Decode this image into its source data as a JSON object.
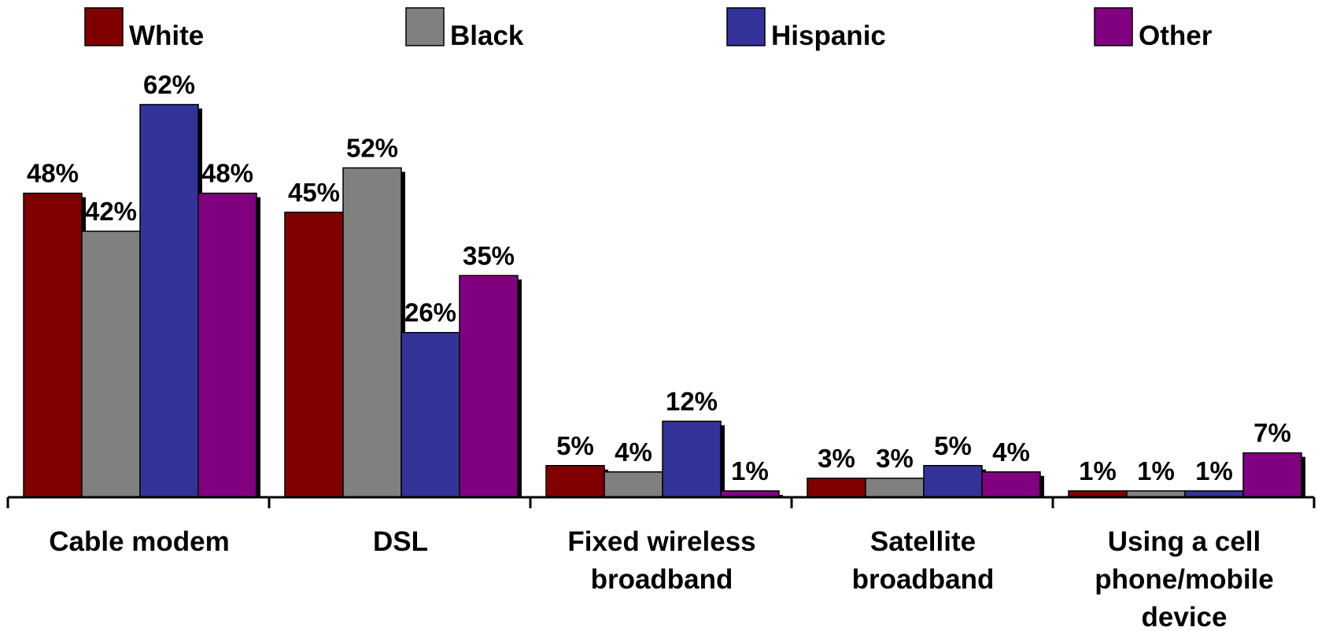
{
  "chart_data": {
    "type": "bar",
    "categories": [
      "Cable modem",
      "DSL",
      "Fixed wireless broadband",
      "Satellite broadband",
      "Using a cell phone/mobile device"
    ],
    "category_lines": [
      [
        "Cable modem"
      ],
      [
        "DSL"
      ],
      [
        "Fixed wireless",
        "broadband"
      ],
      [
        "Satellite",
        "broadband"
      ],
      [
        "Using a cell",
        "phone/mobile",
        "device"
      ]
    ],
    "series": [
      {
        "name": "White",
        "color": "#800000",
        "values": [
          48,
          45,
          5,
          3,
          1
        ],
        "labels": [
          "48%",
          "45%",
          "5%",
          "3%",
          "1%"
        ]
      },
      {
        "name": "Black",
        "color": "#808080",
        "values": [
          42,
          52,
          4,
          3,
          1
        ],
        "labels": [
          "42%",
          "52%",
          "4%",
          "3%",
          "1%"
        ]
      },
      {
        "name": "Hispanic",
        "color": "#333399",
        "values": [
          62,
          26,
          12,
          5,
          1
        ],
        "labels": [
          "62%",
          "26%",
          "12%",
          "5%",
          "1%"
        ]
      },
      {
        "name": "Other",
        "color": "#800080",
        "values": [
          48,
          35,
          1,
          4,
          7
        ],
        "labels": [
          "48%",
          "35%",
          "1%",
          "4%",
          "7%"
        ]
      }
    ],
    "ylim": [
      0,
      70
    ],
    "grid": false,
    "legend_position": "top",
    "title": "",
    "xlabel": "",
    "ylabel": ""
  }
}
